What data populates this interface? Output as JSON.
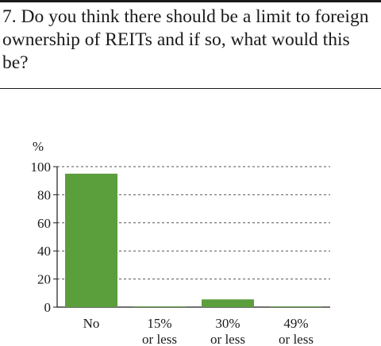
{
  "question": "7. Do you think there should be a limit to foreign ownership of REITs and if so, what would this be?",
  "colors": {
    "bar": "#5b9e3c",
    "axis": "#1a1a1a",
    "grid": "#555555"
  },
  "chart_data": {
    "type": "bar",
    "title": "",
    "ylabel": "%",
    "xlabel": "",
    "ylim": [
      0,
      100
    ],
    "yticks": [
      "0",
      "20",
      "40",
      "60",
      "80",
      "100"
    ],
    "grid": true,
    "categories": [
      [
        "No"
      ],
      [
        "15%",
        "or less"
      ],
      [
        "30%",
        "or less"
      ],
      [
        "49%",
        "or less"
      ]
    ],
    "values": [
      95,
      0.5,
      5.5,
      0.5
    ]
  }
}
